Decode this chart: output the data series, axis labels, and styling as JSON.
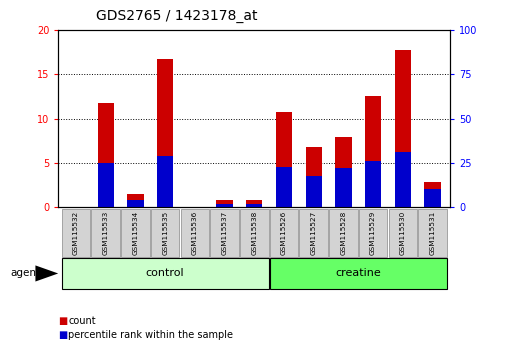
{
  "title": "GDS2765 / 1423178_at",
  "samples": [
    "GSM115532",
    "GSM115533",
    "GSM115534",
    "GSM115535",
    "GSM115536",
    "GSM115537",
    "GSM115538",
    "GSM115526",
    "GSM115527",
    "GSM115528",
    "GSM115529",
    "GSM115530",
    "GSM115531"
  ],
  "count_values": [
    0.0,
    11.8,
    1.5,
    16.7,
    0.0,
    0.8,
    0.8,
    10.7,
    6.8,
    7.9,
    12.5,
    17.8,
    2.8
  ],
  "percentile_values": [
    0.0,
    25.0,
    4.0,
    29.0,
    0.0,
    1.5,
    1.5,
    22.5,
    17.5,
    22.0,
    26.0,
    31.0,
    10.5
  ],
  "groups": [
    {
      "label": "control",
      "start": 0,
      "end": 7,
      "color": "#ccffcc"
    },
    {
      "label": "creatine",
      "start": 7,
      "end": 13,
      "color": "#66ff66"
    }
  ],
  "bar_color_red": "#cc0000",
  "bar_color_blue": "#0000cc",
  "bar_width": 0.55,
  "ylim_left": [
    0,
    20
  ],
  "ylim_right": [
    0,
    100
  ],
  "yticks_left": [
    0,
    5,
    10,
    15,
    20
  ],
  "yticks_right": [
    0,
    25,
    50,
    75,
    100
  ],
  "title_fontsize": 10,
  "tick_fontsize": 7,
  "agent_label": "agent",
  "legend_count": "count",
  "legend_percentile": "percentile rank within the sample"
}
